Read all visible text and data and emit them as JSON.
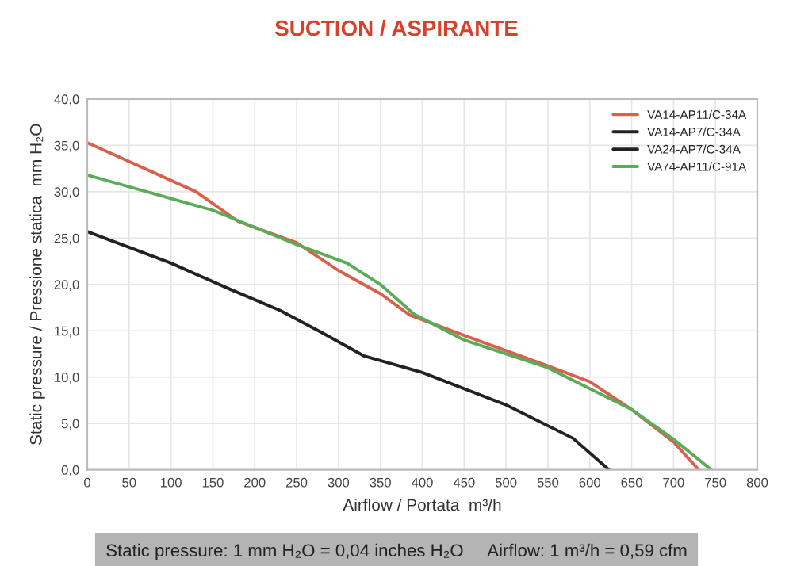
{
  "chart_data": {
    "type": "line",
    "title": "SUCTION / ASPIRANTE",
    "xlabel": "Airflow / Portata  m³/h",
    "ylabel": "Static pressure / Pressione statica  mm H₂O",
    "annotations": [
      "Static pressure: 1 mm H₂O = 0,04 inches H₂O     Airflow: 1 m³/h = 0,59 cfm"
    ],
    "series": [
      {
        "name": "VA14-AP11/C-34A",
        "color": "#d9604c",
        "x": [
          0,
          130,
          180,
          250,
          300,
          350,
          385,
          450,
          550,
          600,
          650,
          700,
          730
        ],
        "values": [
          35.3,
          30,
          26.8,
          24.5,
          21.5,
          19,
          16.7,
          14.5,
          11.2,
          9.5,
          6.5,
          3,
          0
        ]
      },
      {
        "name": "VA14-AP7/C-34A",
        "color": "#222222",
        "x": [
          0,
          100,
          170,
          230,
          280,
          330,
          400,
          500,
          580,
          623
        ],
        "values": [
          25.7,
          22.3,
          19.5,
          17.2,
          14.8,
          12.3,
          10.5,
          7,
          3.4,
          0
        ]
      },
      {
        "name": "VA24-AP7/C-34A",
        "color": "#222222"
      },
      {
        "name": "VA74-AP11/C-91A",
        "color": "#5aac5a",
        "x": [
          0,
          150,
          250,
          310,
          350,
          390,
          450,
          550,
          650,
          700,
          745
        ],
        "values": [
          31.8,
          28,
          24.3,
          22.3,
          20,
          16.8,
          14,
          11,
          6.5,
          3.3,
          0
        ]
      }
    ],
    "xlim": [
      0,
      800
    ],
    "xticks": [
      0,
      50,
      100,
      150,
      200,
      250,
      300,
      350,
      400,
      450,
      500,
      550,
      600,
      650,
      700,
      750,
      800
    ],
    "ylim": [
      0,
      40
    ],
    "yticks": [
      {
        "value": 0,
        "label": "0,0"
      },
      {
        "value": 5,
        "label": "5,0"
      },
      {
        "value": 10,
        "label": "10,0"
      },
      {
        "value": 15,
        "label": "15,0"
      },
      {
        "value": 20,
        "label": "20,0"
      },
      {
        "value": 25,
        "label": "25,0"
      },
      {
        "value": 30,
        "label": "30,0"
      },
      {
        "value": 35,
        "label": "35,0"
      },
      {
        "value": 40,
        "label": "40,0"
      }
    ],
    "grid": true,
    "legend": "top right",
    "marker": "none",
    "line_style": "solid"
  }
}
